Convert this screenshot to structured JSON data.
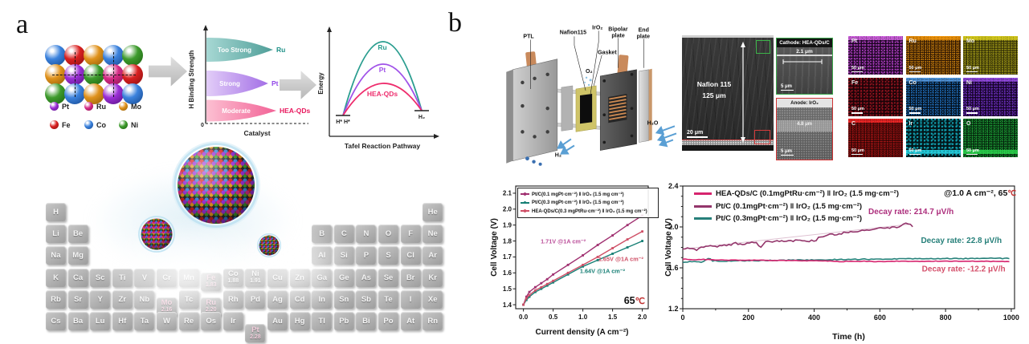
{
  "figure": {
    "panel_a_label": "a",
    "panel_b_label": "b"
  },
  "panel_a": {
    "atom_colors": {
      "purple": "#9b2fd6",
      "magenta": "#d62c86",
      "orange": "#e0921c",
      "red": "#d92121",
      "blue": "#3b82dd",
      "green": "#3e9b2d"
    },
    "atom_dark": {
      "purple": "#581082",
      "magenta": "#8c1252",
      "orange": "#8f5c06",
      "red": "#8a0e0e",
      "blue": "#15488f",
      "green": "#1c6310"
    },
    "atom_grid_rows": [
      [
        "blue",
        "red",
        "orange",
        "blue",
        "green"
      ],
      [
        "orange",
        "purple",
        "green",
        "magenta",
        "red"
      ],
      [
        "green",
        "blue",
        "orange",
        "purple",
        "blue"
      ]
    ],
    "crosshairs": [
      [
        1,
        1
      ],
      [
        1,
        3
      ]
    ],
    "legend": [
      {
        "label": "Pt",
        "color": "purple"
      },
      {
        "label": "Ru",
        "color": "magenta"
      },
      {
        "label": "Mo",
        "color": "orange"
      },
      {
        "label": "Fe",
        "color": "red"
      },
      {
        "label": "Co",
        "color": "blue"
      },
      {
        "label": "Ni",
        "color": "green"
      }
    ],
    "periodic_table": {
      "rows": [
        {
          "syms": [
            "H",
            "He"
          ],
          "cols": [
            1,
            18
          ]
        },
        {
          "syms": [
            "Li",
            "Be",
            "B",
            "C",
            "N",
            "O",
            "F",
            "Ne"
          ],
          "cols": [
            1,
            2,
            13,
            14,
            15,
            16,
            17,
            18
          ]
        },
        {
          "syms": [
            "Na",
            "Mg",
            "Al",
            "Si",
            "P",
            "S",
            "Cl",
            "Ar"
          ],
          "cols": [
            1,
            2,
            13,
            14,
            15,
            16,
            17,
            18
          ]
        },
        {
          "syms": [
            "K",
            "Ca",
            "Sc",
            "Ti",
            "V",
            "Cr",
            "Mn",
            "Fe",
            "Co",
            "Ni",
            "Cu",
            "Zn",
            "Ga",
            "Ge",
            "As",
            "Se",
            "Br",
            "Kr"
          ]
        },
        {
          "syms": [
            "Rb",
            "Sr",
            "Y",
            "Zr",
            "Nb",
            "Mo",
            "Tc",
            "Ru",
            "Rh",
            "Pd",
            "Ag",
            "Cd",
            "In",
            "Sn",
            "Sb",
            "Te",
            "I",
            "Xe"
          ]
        },
        {
          "syms": [
            "Cs",
            "Ba",
            "Lu",
            "Hf",
            "Ta",
            "W",
            "Re",
            "Os",
            "Ir",
            "Pt",
            "Au",
            "Hg",
            "Tl",
            "Pb",
            "Bi",
            "Po",
            "At",
            "Rn"
          ]
        }
      ],
      "values": {
        "Fe": "1.83",
        "Co": "1.88",
        "Ni": "1.91",
        "Mo": "2.16",
        "Ru": "2.20",
        "Pt": "2.28"
      },
      "pulled": {
        "Fe": 5,
        "Mo": 9,
        "Ru": 9,
        "Pt": 15
      },
      "highlight": [
        "Fe",
        "Mo",
        "Ru",
        "Pt"
      ]
    }
  },
  "panel_b": {
    "schematic": {
      "ptl": "PTL",
      "nafion": "Nafion115",
      "iro2": "IrO₂",
      "bipolar1": "Bipolar",
      "bipolar2": "plate",
      "endplate1": "End",
      "endplate2": "plate",
      "gasket": "Gasket",
      "o2": "O₂",
      "h2o": "H₂O",
      "h2": "H₂"
    },
    "sem": {
      "membrane_line1": "Nafion 115",
      "membrane_line2": "125 μm",
      "scale_main": "20 μm",
      "cathode_title": "Cathode: HEA-QDs/C",
      "cathode_thickness": "2.1 μm",
      "anode_title": "Anode: IrO₂",
      "anode_thickness": "4.8 μm",
      "scale_inset": "5 μm"
    },
    "eds": {
      "scale": "50 μm",
      "tiles": [
        {
          "el": "Pt",
          "base": "#1d0623",
          "dot": "#b13fc4",
          "band": "#d96ae8",
          "band_side": "top",
          "density": 3.4
        },
        {
          "el": "Ru",
          "base": "#2b1503",
          "dot": "#e8940f",
          "band": "#ff9d0a",
          "band_side": "top",
          "density": 2.6
        },
        {
          "el": "Mo",
          "base": "#2a2806",
          "dot": "#cfc41d",
          "band": "#e8dc1f",
          "band_side": "top",
          "density": 2.3
        },
        {
          "el": "Fe",
          "base": "#1c0308",
          "dot": "#97141f",
          "band": "#c22030",
          "band_side": "none",
          "density": 3.8
        },
        {
          "el": "Co",
          "base": "#04101c",
          "dot": "#2273c4",
          "band": "#5aa0e8",
          "band_side": "top",
          "density": 3.0
        },
        {
          "el": "Ni",
          "base": "#150426",
          "dot": "#6d2fbf",
          "band": "#9a4fe8",
          "band_side": "top",
          "density": 3.2
        },
        {
          "el": "C",
          "base": "#270404",
          "dot": "#d81a1a",
          "band": "#ff2a2a",
          "band_side": "top",
          "density": 2.3
        },
        {
          "el": "Ir",
          "base": "#03161a",
          "dot": "#12a9ba",
          "band": "#28e0f0",
          "band_side": "bottom",
          "density": 4.4
        },
        {
          "el": "O",
          "base": "#04230c",
          "dot": "#22b33e",
          "band": "#2ee052",
          "band_side": "bottom",
          "density": 2.7
        }
      ]
    }
  },
  "chart_data": [
    {
      "type": "concept-bands",
      "ylabel": "H Binding Strength",
      "xlabel": "Catalyst",
      "origin_label": "0",
      "bands": [
        {
          "strength": "Too Strong",
          "catalyst": "Ru",
          "fill_light": "#a7d8d4",
          "fill": "#4f9e98",
          "label_color": "#1f9188"
        },
        {
          "strength": "Strong",
          "catalyst": "Pt",
          "fill_light": "#e2cdf8",
          "fill": "#a36fe6",
          "label_color": "#9147e8"
        },
        {
          "strength": "Moderate",
          "catalyst": "HEA-QDs",
          "fill_light": "#fcc0d2",
          "fill": "#f26296",
          "label_color": "#e8175d"
        }
      ]
    },
    {
      "type": "concept-energy",
      "ylabel": "Energy",
      "xlabel": "Tafel Reaction Pathway",
      "initial_state": "H* H*",
      "final_state": "H₂",
      "curves": [
        {
          "name": "Ru",
          "color": "#2a9d8f",
          "barrier": "highest"
        },
        {
          "name": "Pt",
          "color": "#a052e8",
          "barrier": "middle"
        },
        {
          "name": "HEA-QDs",
          "color": "#ee2d6d",
          "barrier": "lowest"
        }
      ]
    },
    {
      "type": "line",
      "xlabel": "Current density (A cm⁻²)",
      "ylabel": "Cell Voltage (V)",
      "xlim": [
        -0.13,
        2.1
      ],
      "ylim": [
        1.375,
        2.145
      ],
      "xticks": [
        0.0,
        0.5,
        1.0,
        1.5,
        2.0
      ],
      "yticks": [
        1.4,
        1.5,
        1.6,
        1.7,
        1.8,
        1.9,
        2.0,
        2.1
      ],
      "temperature": "65",
      "degree": "℃",
      "legend_position": "top-left-box",
      "grid": false,
      "series": [
        {
          "name": "Pt/C(0.1 mgPt·cm⁻²) ‖ IrO₂ (1.5 mg cm⁻²)",
          "color": "#a03070",
          "points": [
            [
              0,
              1.4
            ],
            [
              0.05,
              1.45
            ],
            [
              0.1,
              1.48
            ],
            [
              0.2,
              1.51
            ],
            [
              0.3,
              1.535
            ],
            [
              0.4,
              1.56
            ],
            [
              0.5,
              1.59
            ],
            [
              0.75,
              1.65
            ],
            [
              1.0,
              1.71
            ],
            [
              1.25,
              1.775
            ],
            [
              1.5,
              1.835
            ],
            [
              1.75,
              1.9
            ],
            [
              2.0,
              1.96
            ]
          ]
        },
        {
          "name": "Pt/C(0.3 mgPt·cm⁻²) ‖ IrO₂ (1.5 mg cm⁻²)",
          "color": "#177f75",
          "points": [
            [
              0,
              1.4
            ],
            [
              0.05,
              1.43
            ],
            [
              0.1,
              1.45
            ],
            [
              0.2,
              1.48
            ],
            [
              0.3,
              1.5
            ],
            [
              0.4,
              1.52
            ],
            [
              0.5,
              1.54
            ],
            [
              0.75,
              1.59
            ],
            [
              1.0,
              1.64
            ],
            [
              1.25,
              1.68
            ],
            [
              1.5,
              1.72
            ],
            [
              1.75,
              1.76
            ],
            [
              2.0,
              1.8
            ]
          ]
        },
        {
          "name": "HEA-QDs/C(0.3 mgPtRu·cm⁻²) ‖ IrO₂ (1.5 mg cm⁻²)",
          "color": "#cf4f66",
          "points": [
            [
              0,
              1.4
            ],
            [
              0.05,
              1.44
            ],
            [
              0.1,
              1.46
            ],
            [
              0.2,
              1.49
            ],
            [
              0.3,
              1.51
            ],
            [
              0.4,
              1.53
            ],
            [
              0.5,
              1.55
            ],
            [
              0.75,
              1.6
            ],
            [
              1.0,
              1.65
            ],
            [
              1.25,
              1.7
            ],
            [
              1.5,
              1.755
            ],
            [
              1.75,
              1.81
            ],
            [
              2.0,
              1.86
            ]
          ]
        }
      ],
      "annotations": [
        {
          "text": "1.71V @1A cm⁻²",
          "color": "#bb4f9a",
          "x": 0.29,
          "y": 1.785
        },
        {
          "text": "1.65V @1A cm⁻²",
          "color": "#cf4f66",
          "x": 1.26,
          "y": 1.675
        },
        {
          "text": "1.64V @1A cm⁻²",
          "color": "#177f75",
          "x": 0.95,
          "y": 1.598
        }
      ]
    },
    {
      "type": "line",
      "xlabel": "Time (h)",
      "ylabel": "Cell Voltage (V)",
      "xlim": [
        0,
        1010
      ],
      "ylim": [
        1.2,
        2.4
      ],
      "xticks": [
        0,
        200,
        400,
        600,
        800,
        1000
      ],
      "yticks": [
        1.2,
        1.6,
        2.0,
        2.4
      ],
      "condition": "@1.0 A cm⁻², 65",
      "degree": "℃",
      "grid": false,
      "series": [
        {
          "name": "HEA-QDs/C (0.1mgPtRu·cm⁻²) ‖ IrO₂ (1.5 mg·cm⁻²)",
          "color": "#d6246e",
          "noise": 0.003,
          "points": [
            [
              0,
              1.685
            ],
            [
              30,
              1.68
            ],
            [
              60,
              1.682
            ],
            [
              100,
              1.678
            ],
            [
              150,
              1.675
            ],
            [
              200,
              1.675
            ],
            [
              250,
              1.673
            ],
            [
              300,
              1.672
            ],
            [
              350,
              1.67
            ],
            [
              400,
              1.668
            ],
            [
              450,
              1.667
            ],
            [
              480,
              1.66
            ],
            [
              500,
              1.665
            ],
            [
              550,
              1.664
            ],
            [
              600,
              1.662
            ],
            [
              650,
              1.664
            ],
            [
              700,
              1.663
            ],
            [
              750,
              1.664
            ],
            [
              800,
              1.665
            ],
            [
              850,
              1.664
            ],
            [
              900,
              1.664
            ],
            [
              950,
              1.663
            ],
            [
              1000,
              1.663
            ]
          ]
        },
        {
          "name": "Pt/C (0.1mgPt·cm⁻²) ‖ IrO₂ (1.5 mg·cm⁻²)",
          "color": "#93356b",
          "noise": 0.009,
          "trend": true,
          "points": [
            [
              0,
              1.785
            ],
            [
              20,
              1.79
            ],
            [
              40,
              1.775
            ],
            [
              60,
              1.8
            ],
            [
              80,
              1.815
            ],
            [
              100,
              1.81
            ],
            [
              120,
              1.82
            ],
            [
              140,
              1.825
            ],
            [
              160,
              1.84
            ],
            [
              180,
              1.83
            ],
            [
              200,
              1.845
            ],
            [
              220,
              1.85
            ],
            [
              240,
              1.795
            ],
            [
              250,
              1.85
            ],
            [
              270,
              1.855
            ],
            [
              290,
              1.86
            ],
            [
              310,
              1.855
            ],
            [
              330,
              1.865
            ],
            [
              350,
              1.87
            ],
            [
              370,
              1.86
            ],
            [
              390,
              1.865
            ],
            [
              405,
              1.855
            ],
            [
              415,
              1.9
            ],
            [
              430,
              1.91
            ],
            [
              450,
              1.925
            ],
            [
              470,
              1.93
            ],
            [
              490,
              1.94
            ],
            [
              510,
              1.95
            ],
            [
              530,
              1.955
            ],
            [
              550,
              1.97
            ],
            [
              570,
              1.975
            ],
            [
              590,
              1.98
            ],
            [
              610,
              1.99
            ],
            [
              630,
              1.995
            ],
            [
              650,
              2.0
            ],
            [
              670,
              2.02
            ],
            [
              685,
              2.035
            ],
            [
              700,
              2.01
            ]
          ]
        },
        {
          "name": "Pt/C (0.3mgPt·cm⁻²) ‖ IrO₂ (1.5 mg·cm⁻²)",
          "color": "#27807a",
          "noise": 0.0045,
          "points": [
            [
              0,
              1.655
            ],
            [
              30,
              1.66
            ],
            [
              60,
              1.655
            ],
            [
              80,
              1.695
            ],
            [
              90,
              1.67
            ],
            [
              120,
              1.665
            ],
            [
              160,
              1.67
            ],
            [
              200,
              1.67
            ],
            [
              250,
              1.672
            ],
            [
              300,
              1.675
            ],
            [
              350,
              1.675
            ],
            [
              400,
              1.678
            ],
            [
              450,
              1.68
            ],
            [
              500,
              1.682
            ],
            [
              550,
              1.684
            ],
            [
              600,
              1.686
            ],
            [
              650,
              1.688
            ],
            [
              700,
              1.688
            ],
            [
              750,
              1.69
            ],
            [
              800,
              1.69
            ],
            [
              850,
              1.69
            ],
            [
              900,
              1.692
            ],
            [
              950,
              1.692
            ],
            [
              1000,
              1.692
            ]
          ]
        }
      ],
      "annotations": [
        {
          "text": "Decay rate: 214.7 μV/h",
          "color": "#ad2f7d",
          "x": 565,
          "y": 2.125
        },
        {
          "text": "Decay rate: 22.8 μV/h",
          "color": "#27807a",
          "x": 725,
          "y": 1.845
        },
        {
          "text": "Decay rate: -12.2 μV/h",
          "color": "#d4506b",
          "x": 728,
          "y": 1.565
        }
      ]
    }
  ]
}
